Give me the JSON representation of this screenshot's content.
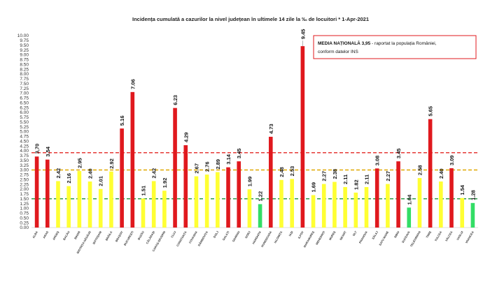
{
  "chart_data": {
    "type": "bar",
    "title": "Incidența cumulată a cazurilor la nivel județean în ultimele 14 zile la ‰ de locuitori * 1-Apr-2021",
    "xlabel": "",
    "ylabel": "",
    "ylim": [
      0,
      10
    ],
    "y_ticks": [
      "0.00",
      "0.25",
      "0.50",
      "0.75",
      "1.00",
      "1.25",
      "1.50",
      "1.75",
      "2.00",
      "2.25",
      "2.50",
      "2.75",
      "3.00",
      "3.25",
      "3.50",
      "3.75",
      "4.00",
      "4.25",
      "4.50",
      "4.75",
      "5.00",
      "5.25",
      "5.50",
      "5.75",
      "6.00",
      "6.25",
      "6.50",
      "6.75",
      "7.00",
      "7.25",
      "7.50",
      "7.75",
      "8.00",
      "8.25",
      "8.50",
      "8.75",
      "9.00",
      "9.25",
      "9.50",
      "9.75",
      "10.00"
    ],
    "grid": false,
    "categories": [
      "ALBA",
      "ARAD",
      "ARGEȘ",
      "BACĂU",
      "BIHOR",
      "BISTRIȚA NĂSĂUD",
      "BOTOȘANI",
      "BRĂILA",
      "BRAȘOV",
      "BUCUREȘTI",
      "BUZĂU",
      "CĂLĂRAȘI",
      "CARAȘ-SEVERIN",
      "CLUJ",
      "CONSTANȚA",
      "COVASNA",
      "DÂMBOVIȚA",
      "DOLJ",
      "GALAȚI",
      "GIURGIU",
      "GORJ",
      "HARGHITA",
      "HUNEDOARA",
      "IALOMIȚA",
      "IAȘI",
      "ILFOV",
      "MARAMUREȘ",
      "MEHEDINȚI",
      "MUREȘ",
      "NEAMȚ",
      "OLT",
      "PRAHOVA",
      "SĂLAJ",
      "SATU MARE",
      "SIBIU",
      "SUCEAVA",
      "TELEORMAN",
      "TIMIȘ",
      "TULCEA",
      "VÂLCEA",
      "VASLUI",
      "VRANCEA"
    ],
    "values": [
      3.7,
      3.54,
      2.42,
      2.16,
      2.95,
      2.4,
      2.01,
      2.92,
      5.16,
      7.06,
      1.51,
      2.42,
      1.92,
      6.23,
      4.29,
      2.67,
      2.76,
      2.89,
      3.14,
      3.45,
      1.99,
      1.22,
      4.73,
      2.48,
      2.53,
      9.45,
      1.69,
      2.27,
      2.38,
      2.11,
      1.82,
      2.11,
      3.08,
      2.27,
      3.45,
      1.04,
      2.58,
      5.65,
      2.4,
      3.09,
      1.54,
      1.28
    ],
    "value_labels": [
      "3,70",
      "3.54",
      "2.42",
      "2.16",
      "2.95",
      "2.40",
      "2.01",
      "2.92",
      "5.16",
      "7.06",
      "1.51",
      "2.42",
      "1.92",
      "6.23",
      "4.29",
      "2.67",
      "2.76",
      "2.89",
      "3.14",
      "3.45",
      "1.99",
      "1.22",
      "4.73",
      "2.48",
      "2.53",
      "9.45",
      "1.69",
      "2.27",
      "2.38",
      "2.11",
      "1.82",
      "2.11",
      "3.08",
      "2.27",
      "3.45",
      "1.04",
      "2.58",
      "5.65",
      "2.40",
      "3.09",
      "1.54",
      "1.28"
    ],
    "thresholds": [
      {
        "value": 3.9,
        "color": "#e53935"
      },
      {
        "value": 3.0,
        "color": "#e0a800"
      },
      {
        "value": 1.5,
        "color": "#2e9e4a"
      }
    ],
    "colors": {
      "red": "#e0191e",
      "yellow": "#ffff33",
      "green": "#33dd66"
    },
    "annotation": {
      "line1_bold": "MEDIA NAȚIONALĂ  3,95",
      "line1_rest": " - raportat la populația României,",
      "line2": "conform datelor INS"
    }
  }
}
